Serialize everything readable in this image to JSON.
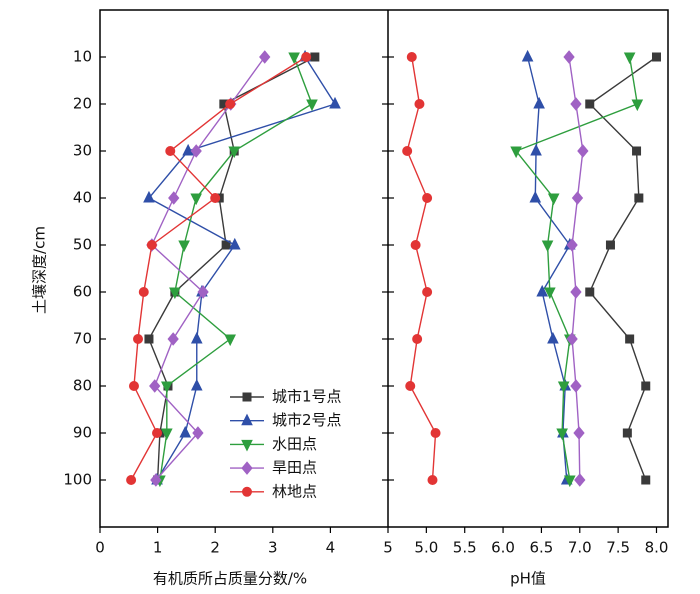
{
  "chart_data": [
    {
      "type": "line",
      "xlabel": "有机质所占质量分数/%",
      "ylabel": "土壤深度/cm",
      "y": [
        10,
        20,
        30,
        40,
        50,
        60,
        70,
        80,
        90,
        100
      ],
      "xlim": [
        0,
        5
      ],
      "xticks": [
        0,
        1,
        2,
        3,
        4,
        5
      ],
      "ylim": [
        0,
        110
      ],
      "yticks": [
        10,
        20,
        30,
        40,
        50,
        60,
        70,
        80,
        90,
        100
      ],
      "legend": "lower left",
      "series": [
        {
          "name": "城市1号点",
          "color": "#3a3a3a",
          "marker": "square",
          "values": [
            3.73,
            2.15,
            2.33,
            2.07,
            2.19,
            1.3,
            0.85,
            1.18,
            1.04,
            1.0
          ]
        },
        {
          "name": "城市2号点",
          "color": "#2f4fa8",
          "marker": "triangle",
          "values": [
            3.56,
            4.08,
            1.53,
            0.85,
            2.34,
            1.77,
            1.68,
            1.68,
            1.48,
            0.99
          ]
        },
        {
          "name": "水田点",
          "color": "#2e9e3e",
          "marker": "triangle-down",
          "values": [
            3.37,
            3.68,
            2.33,
            1.67,
            1.46,
            1.3,
            2.26,
            1.16,
            1.16,
            1.04
          ]
        },
        {
          "name": "旱田点",
          "color": "#a062c4",
          "marker": "diamond",
          "values": [
            2.86,
            2.27,
            1.67,
            1.28,
            0.9,
            1.79,
            1.27,
            0.95,
            1.7,
            0.97
          ]
        },
        {
          "name": "林地点",
          "color": "#e23535",
          "marker": "circle",
          "values": [
            3.58,
            2.26,
            1.22,
            2.0,
            0.9,
            0.76,
            0.66,
            0.59,
            0.99,
            0.54
          ]
        }
      ]
    },
    {
      "type": "line",
      "xlabel": "pH值",
      "y": [
        10,
        20,
        30,
        40,
        50,
        60,
        70,
        80,
        90,
        100
      ],
      "xlim": [
        4.5,
        8.15
      ],
      "xticks": [
        {
          "value": 5,
          "label": "5.0"
        },
        5.5,
        {
          "value": 6,
          "label": "6.0"
        },
        6.5,
        {
          "value": 7,
          "label": "7.0"
        },
        7.5,
        {
          "value": 8,
          "label": "8.0"
        }
      ],
      "series": [
        {
          "color": "#3a3a3a",
          "marker": "square",
          "values": [
            8.0,
            7.13,
            7.74,
            7.77,
            7.4,
            7.13,
            7.65,
            7.86,
            7.62,
            7.86
          ]
        },
        {
          "color": "#2f4fa8",
          "marker": "triangle",
          "values": [
            6.32,
            6.47,
            6.43,
            6.42,
            6.87,
            6.51,
            6.65,
            6.81,
            6.78,
            6.83
          ]
        },
        {
          "color": "#2e9e3e",
          "marker": "triangle-down",
          "values": [
            7.65,
            7.75,
            6.17,
            6.66,
            6.58,
            6.61,
            6.87,
            6.79,
            6.77,
            6.87
          ]
        },
        {
          "color": "#a062c4",
          "marker": "diamond",
          "values": [
            6.86,
            6.95,
            7.04,
            6.97,
            6.9,
            6.95,
            6.9,
            6.95,
            6.99,
            7.0
          ]
        },
        {
          "color": "#e23535",
          "marker": "circle",
          "values": [
            4.81,
            4.91,
            4.75,
            5.01,
            4.86,
            5.01,
            4.88,
            4.79,
            5.12,
            5.08
          ]
        }
      ]
    }
  ]
}
